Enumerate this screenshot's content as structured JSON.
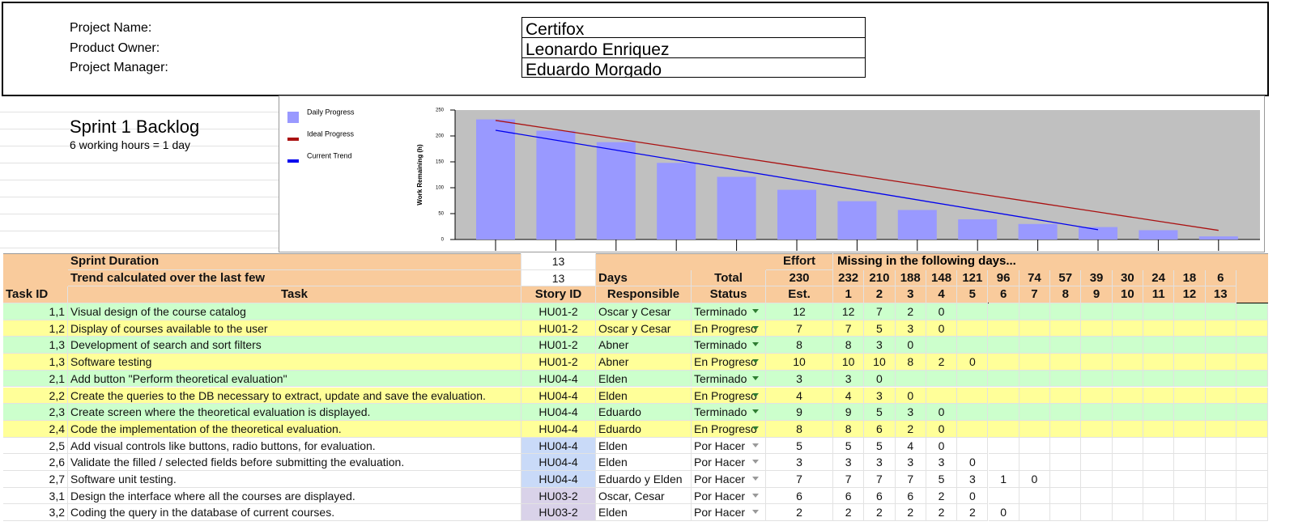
{
  "project": {
    "labels": [
      "Project Name:",
      "Product Owner:",
      "Project Manager:"
    ],
    "values": [
      "Certifox",
      "Leonardo Enriquez",
      "Eduardo Morgado"
    ]
  },
  "sprint": {
    "title": "Sprint 1 Backlog",
    "note": "6 working hours = 1 day"
  },
  "chart": {
    "legend": [
      "Daily Progress",
      "Ideal Progress",
      "Current Trend"
    ],
    "colors": [
      "#9999ff",
      "#aa1111",
      "#0000ee"
    ],
    "y_label": "Work Remaining (h)",
    "ylim": [
      0,
      250
    ],
    "yticks": [
      0,
      50,
      100,
      150,
      200,
      250
    ],
    "bars": [
      232,
      210,
      188,
      148,
      121,
      96,
      74,
      57,
      39,
      30,
      24,
      18,
      6
    ],
    "ideal": [
      230,
      212.3,
      194.6,
      176.9,
      159.2,
      141.5,
      123.8,
      106.2,
      88.5,
      70.8,
      53.1,
      35.4,
      17.7
    ],
    "trend_x": [
      1,
      11
    ],
    "trend": [
      211,
      19
    ]
  },
  "header": {
    "sprint_duration_label": "Sprint Duration",
    "sprint_duration": 13,
    "trend_label": "Trend calculated over the last few",
    "trend_days": 13,
    "days_label": "Days",
    "effort_label": "Effort",
    "missing_label": "Missing in the following days...",
    "total_label": "Total",
    "total": 230,
    "remaining": [
      232,
      210,
      188,
      148,
      121,
      96,
      74,
      57,
      39,
      30,
      24,
      18,
      6
    ],
    "columns": [
      "Task ID",
      "Task",
      "Story ID",
      "Responsible",
      "Status",
      "Est."
    ],
    "days": [
      1,
      2,
      3,
      4,
      5,
      6,
      7,
      8,
      9,
      10,
      11,
      12,
      13
    ]
  },
  "rows": [
    {
      "id": "1,1",
      "task": "Visual design of the course catalog",
      "story": "HU01-2",
      "responsible": "Oscar y Cesar",
      "status": "Terminado",
      "est": 12,
      "remaining": [
        12,
        7,
        2,
        0
      ],
      "color": "#ccffcc"
    },
    {
      "id": "1,2",
      "task": "Display of courses available to the user",
      "story": "HU01-2",
      "responsible": "Oscar y Cesar",
      "status": "En Progreso",
      "est": 7,
      "remaining": [
        7,
        5,
        3,
        0
      ],
      "color": "#ffff99"
    },
    {
      "id": "1,3",
      "task": "Development of search and sort filters",
      "story": "HU01-2",
      "responsible": "Abner",
      "status": "Terminado",
      "est": 8,
      "remaining": [
        8,
        3,
        0
      ],
      "color": "#ccffcc"
    },
    {
      "id": "1,3",
      "task": "Software testing",
      "story": "HU01-2",
      "responsible": "Abner",
      "status": "En Progreso",
      "est": 10,
      "remaining": [
        10,
        10,
        8,
        2,
        0
      ],
      "color": "#ffff99"
    },
    {
      "id": "2,1",
      "task": "Add button \"Perform theoretical evaluation\"",
      "story": "HU04-4",
      "responsible": "Elden",
      "status": "Terminado",
      "est": 3,
      "remaining": [
        3,
        0
      ],
      "color": "#ccffcc"
    },
    {
      "id": "2,2",
      "task": "Create the queries to the DB necessary to extract, update and save the evaluation.",
      "story": "HU04-4",
      "responsible": "Elden",
      "status": "En Progreso",
      "est": 4,
      "remaining": [
        4,
        3,
        0
      ],
      "color": "#ffff99"
    },
    {
      "id": "2,3",
      "task": "Create screen where the theoretical evaluation is displayed.",
      "story": "HU04-4",
      "responsible": "Eduardo",
      "status": "Terminado",
      "est": 9,
      "remaining": [
        9,
        5,
        3,
        0
      ],
      "color": "#ccffcc"
    },
    {
      "id": "2,4",
      "task": "Code the implementation of the theoretical evaluation.",
      "story": "HU04-4",
      "responsible": "Eduardo",
      "status": "En Progreso",
      "est": 8,
      "remaining": [
        8,
        6,
        2,
        0
      ],
      "color": "#ffff99"
    },
    {
      "id": "2,5",
      "task": "Add visual controls like buttons, radio buttons, for evaluation.",
      "story": "HU04-4",
      "responsible": "Elden",
      "status": "Por Hacer",
      "est": 5,
      "remaining": [
        5,
        5,
        4,
        0
      ],
      "color": "#ffffff",
      "story_color": "#c9daf8"
    },
    {
      "id": "2,6",
      "task": "Validate the filled / selected fields before submitting the evaluation.",
      "story": "HU04-4",
      "responsible": "Elden",
      "status": "Por Hacer",
      "est": 3,
      "remaining": [
        3,
        3,
        3,
        3,
        0
      ],
      "color": "#ffffff",
      "story_color": "#c9daf8"
    },
    {
      "id": "2,7",
      "task": "Software unit testing.",
      "story": "HU04-4",
      "responsible": "Eduardo y Elden",
      "status": "Por Hacer",
      "est": 7,
      "remaining": [
        7,
        7,
        7,
        5,
        3,
        1,
        0
      ],
      "color": "#ffffff",
      "story_color": "#c9daf8"
    },
    {
      "id": "3,1",
      "task": "Design the interface where all the courses are displayed.",
      "story": "HU03-2",
      "responsible": "Oscar, Cesar",
      "status": "Por Hacer",
      "est": 6,
      "remaining": [
        6,
        6,
        6,
        2,
        0
      ],
      "color": "#ffffff",
      "story_color": "#d9d2e9"
    },
    {
      "id": "3,2",
      "task": "Coding the query in the database of current courses.",
      "story": "HU03-2",
      "responsible": "Elden",
      "status": "Por Hacer",
      "est": 2,
      "remaining": [
        2,
        2,
        2,
        2,
        2,
        0
      ],
      "color": "#ffffff",
      "story_color": "#d9d2e9"
    }
  ]
}
